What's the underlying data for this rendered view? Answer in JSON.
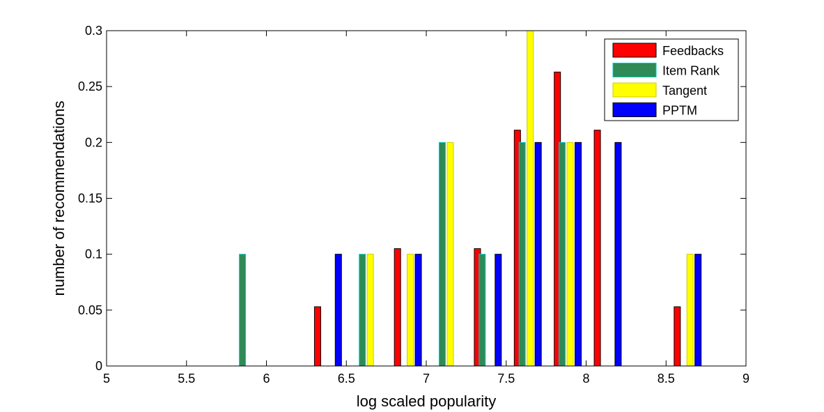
{
  "chart_data": {
    "type": "bar",
    "title": "",
    "xlabel": "log scaled popularity",
    "ylabel": "number of recommendations",
    "xlim": [
      5,
      9
    ],
    "ylim": [
      0,
      0.3
    ],
    "x_ticks": [
      "5",
      "5.5",
      "6",
      "6.5",
      "7",
      "7.5",
      "8",
      "8.5",
      "9"
    ],
    "y_ticks": [
      "0",
      "0.05",
      "0.1",
      "0.15",
      "0.2",
      "0.25",
      "0.3"
    ],
    "legend_position": "top-right",
    "grid": false,
    "series": [
      {
        "name": "Feedbacks",
        "color": "#ff0000",
        "edge_color": "#000000",
        "points": [
          {
            "x": 5.2,
            "y": 0
          },
          {
            "x": 5.45,
            "y": 0
          },
          {
            "x": 5.7,
            "y": 0
          },
          {
            "x": 5.95,
            "y": 0
          },
          {
            "x": 6.2,
            "y": 0
          },
          {
            "x": 6.32,
            "y": 0.053
          },
          {
            "x": 6.57,
            "y": 0
          },
          {
            "x": 6.82,
            "y": 0.105
          },
          {
            "x": 7.07,
            "y": 0
          },
          {
            "x": 7.32,
            "y": 0.105
          },
          {
            "x": 7.57,
            "y": 0.211
          },
          {
            "x": 7.82,
            "y": 0.263
          },
          {
            "x": 8.07,
            "y": 0.211
          },
          {
            "x": 8.32,
            "y": 0
          },
          {
            "x": 8.57,
            "y": 0.053
          },
          {
            "x": 8.82,
            "y": 0
          }
        ]
      },
      {
        "name": "Item Rank",
        "color": "#2e8b57",
        "edge_color": "#00cccc",
        "points": [
          {
            "x": 5.1,
            "y": 0
          },
          {
            "x": 5.35,
            "y": 0
          },
          {
            "x": 5.6,
            "y": 0
          },
          {
            "x": 5.85,
            "y": 0.1
          },
          {
            "x": 6.1,
            "y": 0
          },
          {
            "x": 6.35,
            "y": 0
          },
          {
            "x": 6.6,
            "y": 0.1
          },
          {
            "x": 6.85,
            "y": 0
          },
          {
            "x": 7.1,
            "y": 0.2
          },
          {
            "x": 7.35,
            "y": 0.1
          },
          {
            "x": 7.6,
            "y": 0.2
          },
          {
            "x": 7.85,
            "y": 0.2
          },
          {
            "x": 8.1,
            "y": 0
          },
          {
            "x": 8.35,
            "y": 0
          },
          {
            "x": 8.6,
            "y": 0
          },
          {
            "x": 8.85,
            "y": 0
          }
        ]
      },
      {
        "name": "Tangent",
        "color": "#ffff00",
        "edge_color": "#cccc00",
        "points": [
          {
            "x": 5.15,
            "y": 0
          },
          {
            "x": 5.4,
            "y": 0
          },
          {
            "x": 5.65,
            "y": 0
          },
          {
            "x": 5.9,
            "y": 0
          },
          {
            "x": 6.15,
            "y": 0
          },
          {
            "x": 6.4,
            "y": 0
          },
          {
            "x": 6.65,
            "y": 0.1
          },
          {
            "x": 6.9,
            "y": 0.1
          },
          {
            "x": 7.15,
            "y": 0.2
          },
          {
            "x": 7.4,
            "y": 0
          },
          {
            "x": 7.65,
            "y": 0.3
          },
          {
            "x": 7.9,
            "y": 0.2
          },
          {
            "x": 8.15,
            "y": 0
          },
          {
            "x": 8.4,
            "y": 0
          },
          {
            "x": 8.65,
            "y": 0.1
          },
          {
            "x": 8.9,
            "y": 0
          }
        ]
      },
      {
        "name": "PPTM",
        "color": "#0000ff",
        "edge_color": "#000000",
        "points": [
          {
            "x": 5.2,
            "y": 0
          },
          {
            "x": 5.45,
            "y": 0
          },
          {
            "x": 5.7,
            "y": 0
          },
          {
            "x": 5.95,
            "y": 0
          },
          {
            "x": 6.2,
            "y": 0
          },
          {
            "x": 6.45,
            "y": 0.1
          },
          {
            "x": 6.7,
            "y": 0
          },
          {
            "x": 6.95,
            "y": 0.1
          },
          {
            "x": 7.2,
            "y": 0
          },
          {
            "x": 7.45,
            "y": 0.1
          },
          {
            "x": 7.7,
            "y": 0.2
          },
          {
            "x": 7.95,
            "y": 0.2
          },
          {
            "x": 8.2,
            "y": 0.2
          },
          {
            "x": 8.45,
            "y": 0
          },
          {
            "x": 8.7,
            "y": 0.1
          },
          {
            "x": 8.95,
            "y": 0
          }
        ]
      }
    ]
  }
}
